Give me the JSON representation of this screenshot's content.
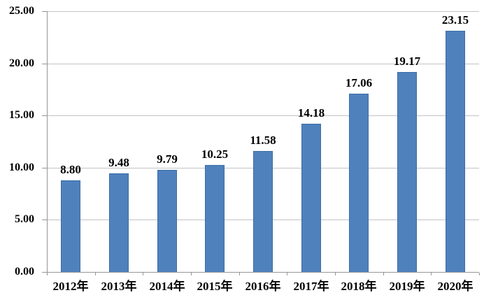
{
  "chart_data": {
    "type": "bar",
    "title": "",
    "xlabel": "",
    "ylabel": "",
    "categories": [
      "2012年",
      "2013年",
      "2014年",
      "2015年",
      "2016年",
      "2017年",
      "2018年",
      "2019年",
      "2020年"
    ],
    "values": [
      8.8,
      9.48,
      9.79,
      10.25,
      11.58,
      14.18,
      17.06,
      19.17,
      23.15
    ],
    "value_labels": [
      "8.80",
      "9.48",
      "9.79",
      "10.25",
      "11.58",
      "14.18",
      "17.06",
      "19.17",
      "23.15"
    ],
    "ylim": [
      0,
      25
    ],
    "yticks": [
      0,
      5,
      10,
      15,
      20,
      25
    ],
    "ytick_labels": [
      "0.00",
      "5.00",
      "10.00",
      "15.00",
      "20.00",
      "25.00"
    ],
    "grid": true,
    "legend": false,
    "colors": {
      "bar_fill": "#4F81BD",
      "bar_border": "#3C6EA5",
      "gridline": "#C3C3C3",
      "axis": "#969696",
      "text": "#000000",
      "background": "#FFFFFF"
    }
  }
}
